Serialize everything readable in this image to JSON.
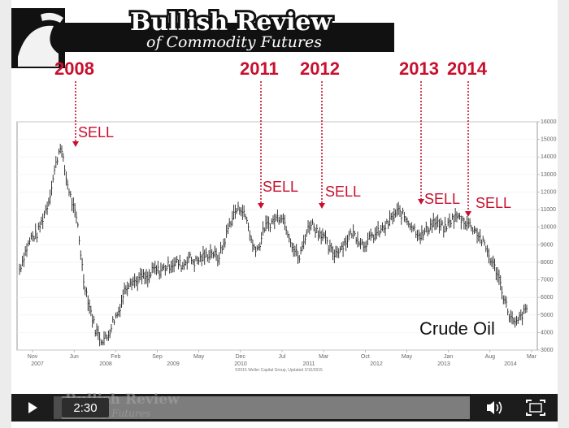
{
  "slide": {
    "title": "Bullish Review",
    "subtitle": "of Commodity Futures",
    "watermark": "Bullish Review",
    "watermark_sub": "ity Futures"
  },
  "annotations": {
    "years": [
      "2008",
      "2011",
      "2012",
      "2013",
      "2014"
    ],
    "sell_label": "SELL",
    "series_label": "Crude Oil"
  },
  "chart_data": {
    "type": "line",
    "x_ticks_top": [
      "Nov",
      "Jun",
      "Feb",
      "Sep",
      "May",
      "Dec",
      "Jul",
      "Mar",
      "Oct",
      "May",
      "Jan",
      "Aug",
      "Mar"
    ],
    "x_ticks_bottom": [
      "2007",
      "2008",
      "2009",
      "2010",
      "2011",
      "2012",
      "2013",
      "2014"
    ],
    "y_ticks": [
      "16000",
      "15000",
      "14000",
      "13000",
      "12000",
      "11000",
      "10000",
      "9000",
      "8000",
      "7000",
      "6000",
      "5000",
      "4000",
      "3000"
    ],
    "ylim": [
      3000,
      16000
    ],
    "credit": "©2015 Weller Capital Group, Updated 2/15/2015",
    "x": [
      "Nov 2007",
      "Dec 2007",
      "Jan 2008",
      "Feb 2008",
      "Mar 2008",
      "Apr 2008",
      "May 2008",
      "Jun 2008",
      "Jul 2008",
      "Aug 2008",
      "Sep 2008",
      "Oct 2008",
      "Nov 2008",
      "Dec 2008",
      "Jan 2009",
      "Feb 2009",
      "Mar 2009",
      "Apr 2009",
      "May 2009",
      "Jun 2009",
      "Jul 2009",
      "Aug 2009",
      "Sep 2009",
      "Oct 2009",
      "Nov 2009",
      "Dec 2009",
      "Jan 2010",
      "Feb 2010",
      "Mar 2010",
      "Apr 2010",
      "May 2010",
      "Jun 2010",
      "Jul 2010",
      "Aug 2010",
      "Sep 2010",
      "Oct 2010",
      "Nov 2010",
      "Dec 2010",
      "Jan 2011",
      "Feb 2011",
      "Mar 2011",
      "Apr 2011",
      "May 2011",
      "Jun 2011",
      "Jul 2011",
      "Aug 2011",
      "Sep 2011",
      "Oct 2011",
      "Nov 2011",
      "Dec 2011",
      "Jan 2012",
      "Feb 2012",
      "Mar 2012",
      "Apr 2012",
      "May 2012",
      "Jun 2012",
      "Jul 2012",
      "Aug 2012",
      "Sep 2012",
      "Oct 2012",
      "Nov 2012",
      "Dec 2012",
      "Jan 2013",
      "Feb 2013",
      "Mar 2013",
      "Apr 2013",
      "May 2013",
      "Jun 2013",
      "Jul 2013",
      "Aug 2013",
      "Sep 2013",
      "Oct 2013",
      "Nov 2013",
      "Dec 2013",
      "Jan 2014",
      "Feb 2014",
      "Mar 2014",
      "Apr 2014",
      "May 2014",
      "Jun 2014",
      "Jul 2014",
      "Aug 2014",
      "Sep 2014",
      "Oct 2014",
      "Nov 2014",
      "Dec 2014",
      "Jan 2015",
      "Feb 2015"
    ],
    "series": [
      {
        "values": [
          7600,
          8600,
          9400,
          9600,
          10500,
          11500,
          13200,
          14700,
          12800,
          11400,
          10100,
          7000,
          5500,
          4200,
          3600,
          3700,
          4600,
          5200,
          6400,
          7000,
          6900,
          7200,
          7000,
          7600,
          7500,
          7700,
          7900,
          8000,
          7800,
          8300,
          8000,
          8200,
          8400,
          8600,
          8200,
          9000,
          10200,
          10900,
          11100,
          10400,
          8900,
          8800,
          10000,
          10200,
          10500,
          10700,
          9800,
          8800,
          8200,
          9500,
          10300,
          9800,
          9600,
          8800,
          8500,
          8800,
          9200,
          9700,
          9400,
          9000,
          9300,
          9600,
          9800,
          10100,
          10600,
          10900,
          10600,
          10200,
          9800,
          9500,
          9900,
          10300,
          10100,
          9900,
          10400,
          10600,
          10400,
          10200,
          9900,
          9400,
          8800,
          8000,
          7400,
          6100,
          5000,
          4400,
          4900,
          5300
        ]
      }
    ]
  }
}
